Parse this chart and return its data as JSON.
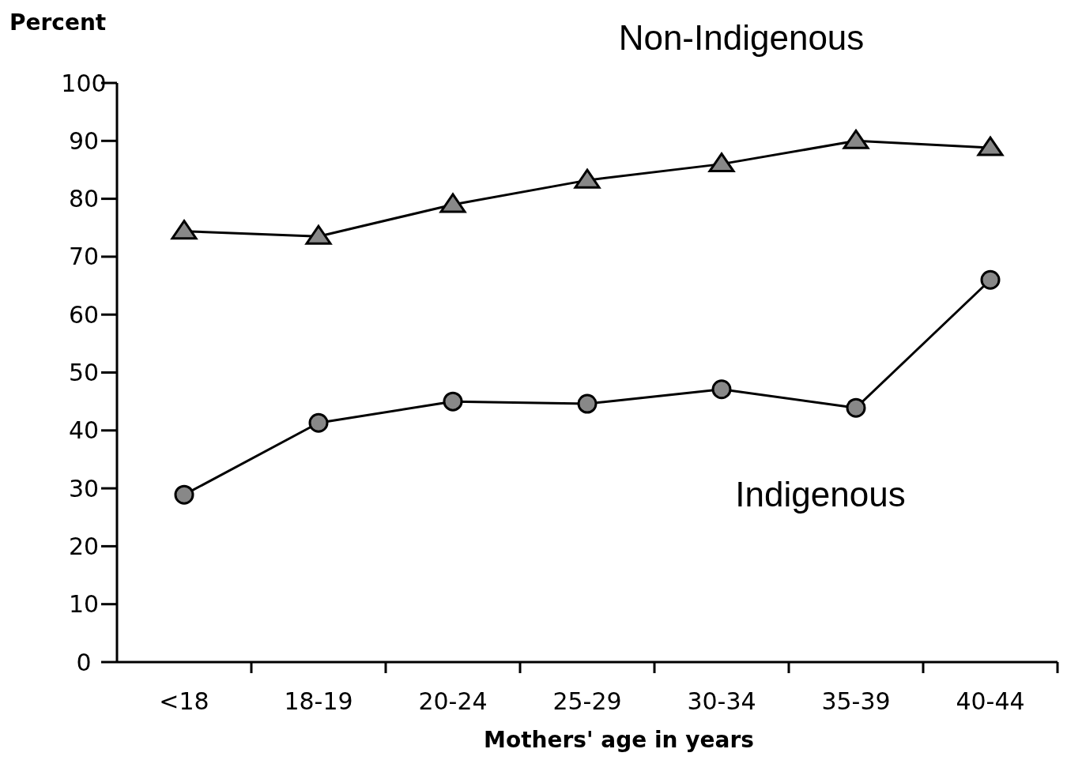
{
  "chart_data": {
    "type": "line",
    "ylabel": "Percent",
    "xlabel": "Mothers' age in years",
    "categories": [
      "<18",
      "18-19",
      "20-24",
      "25-29",
      "30-34",
      "35-39",
      "40-44"
    ],
    "series": [
      {
        "name": "Non-Indigenous",
        "color": "#000000",
        "marker": "triangle",
        "values": [
          74.4,
          73.5,
          79,
          83.2,
          86,
          90,
          88.8
        ]
      },
      {
        "name": "Indigenous",
        "color": "#000000",
        "marker": "circle",
        "values": [
          28.9,
          41.3,
          45,
          44.6,
          47.1,
          43.9,
          66
        ]
      }
    ],
    "ylim": [
      0,
      100
    ],
    "yticks": [
      0,
      10,
      20,
      30,
      40,
      50,
      60,
      70,
      80,
      90,
      100
    ],
    "grid": false,
    "line_style": "solid"
  }
}
